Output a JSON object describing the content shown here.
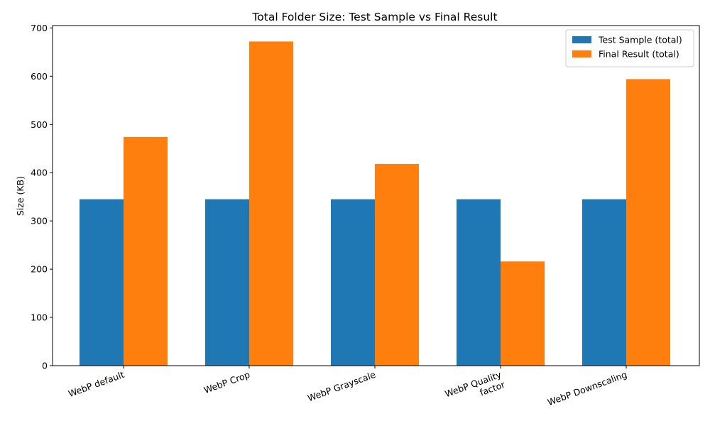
{
  "chart_data": {
    "type": "bar",
    "title": "Total Folder Size: Test Sample vs Final Result",
    "xlabel": "",
    "ylabel": "Size (KB)",
    "ylim": [
      0,
      705
    ],
    "yticks": [
      0,
      100,
      200,
      300,
      400,
      500,
      600,
      700
    ],
    "categories": [
      [
        "WebP default"
      ],
      [
        "WebP Crop"
      ],
      [
        "WebP Grayscale"
      ],
      [
        "WebP Quality",
        "factor"
      ],
      [
        "WebP Downscaling"
      ]
    ],
    "series": [
      {
        "name": "Test Sample (total)",
        "color": "#1f77b4",
        "values": [
          345,
          345,
          345,
          345,
          345
        ]
      },
      {
        "name": "Final Result (total)",
        "color": "#ff7f0e",
        "values": [
          474,
          672,
          418,
          216,
          594
        ]
      }
    ],
    "legend": "top-right",
    "grid": false
  }
}
